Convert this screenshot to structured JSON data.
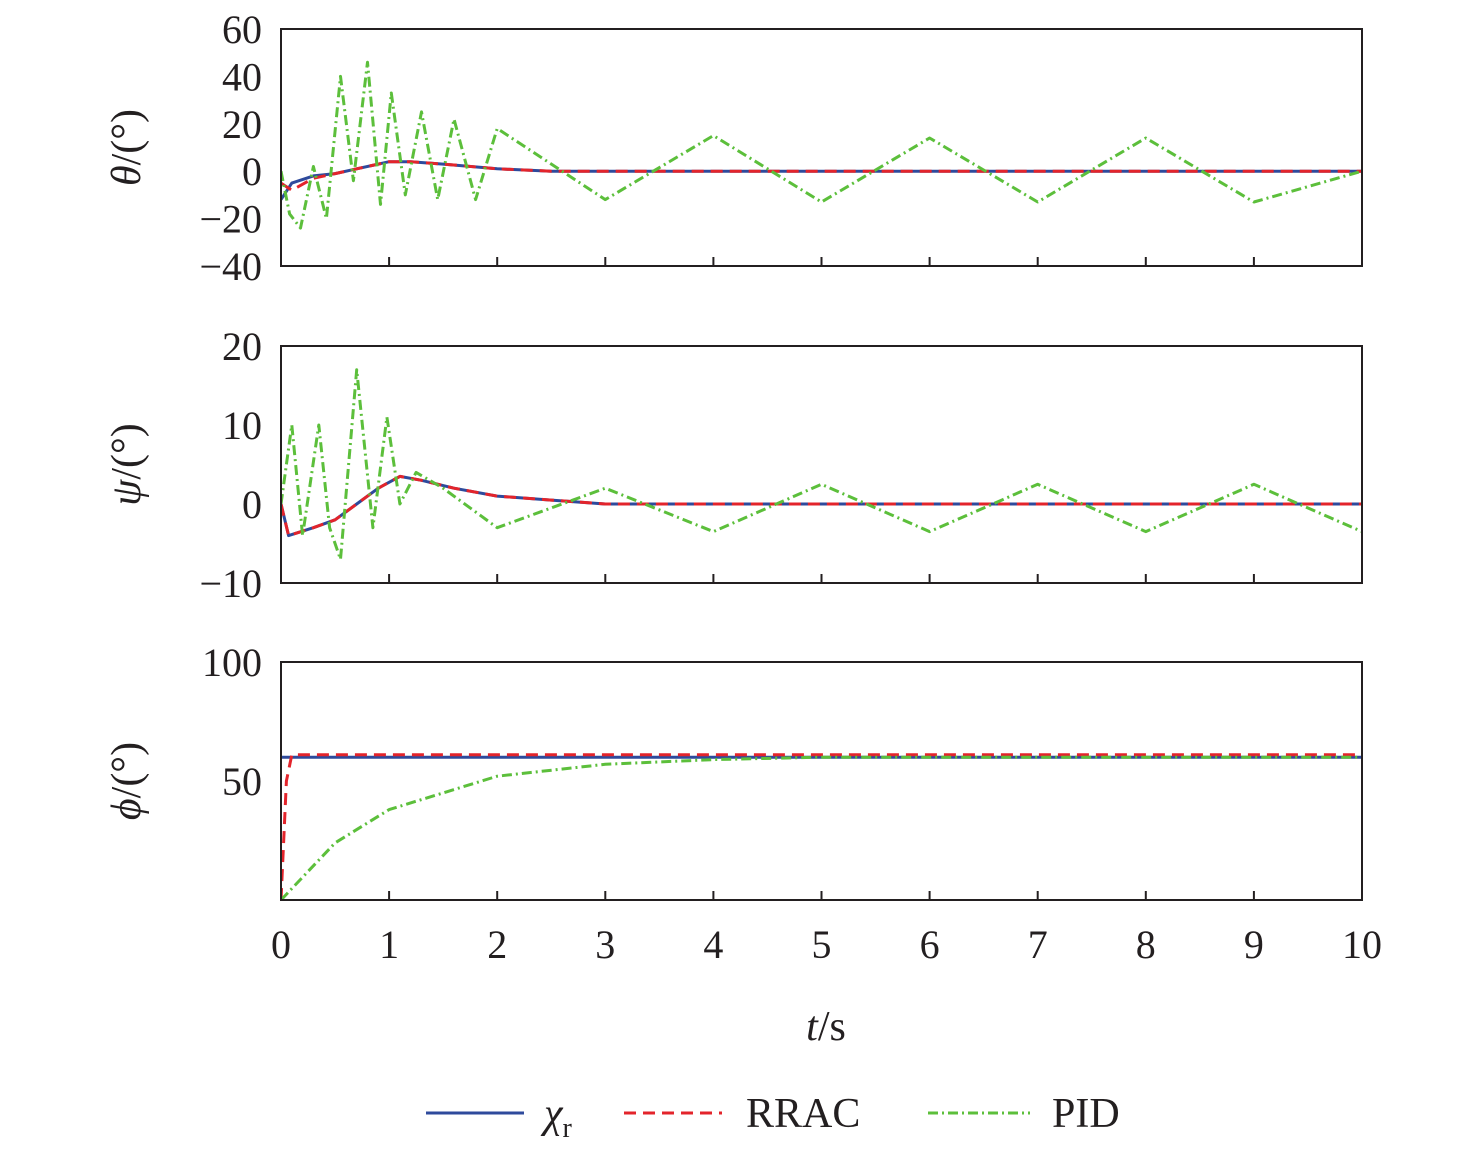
{
  "colors": {
    "reference": "#2e4a9c",
    "rrac": "#e3242b",
    "pid": "#5cbf3b",
    "axis": "#231f20"
  },
  "xaxis": {
    "label_var": "t",
    "label_unit": "/s",
    "ticks": [
      0,
      1,
      2,
      3,
      4,
      5,
      6,
      7,
      8,
      9,
      10
    ]
  },
  "legend": {
    "placement": "bottom-center",
    "items": [
      {
        "key": "reference",
        "symbol": "χ",
        "subscript": "r",
        "style": "solid"
      },
      {
        "key": "rrac",
        "label": "RRAC",
        "style": "dashed"
      },
      {
        "key": "pid",
        "label": "PID",
        "style": "dash-dot"
      }
    ]
  },
  "chart_data": [
    {
      "type": "line",
      "ylabel_var": "θ",
      "ylabel_unit": "/(°)",
      "xlim": [
        0,
        10
      ],
      "ylim": [
        -40,
        60
      ],
      "yticks": [
        -40,
        -20,
        0,
        20,
        40,
        60
      ],
      "grid": false,
      "series": [
        {
          "key": "reference",
          "x": [
            0,
            0.1,
            0.3,
            0.5,
            0.7,
            0.9,
            1.0,
            1.2,
            1.5,
            2.0,
            2.5,
            3.0,
            4.0,
            5.0,
            6.0,
            7.0,
            8.0,
            9.0,
            10.0
          ],
          "y": [
            -12,
            -5,
            -2,
            -1,
            1,
            3,
            4,
            4,
            3,
            1,
            0,
            0,
            0,
            0,
            0,
            0,
            0,
            0,
            0
          ]
        },
        {
          "key": "rrac",
          "x": [
            0,
            0.1,
            0.3,
            0.5,
            0.7,
            0.9,
            1.0,
            1.2,
            1.5,
            2.0,
            2.5,
            3.0,
            4.0,
            5.0,
            6.0,
            7.0,
            8.0,
            9.0,
            10.0
          ],
          "y": [
            -5,
            -8,
            -3,
            -1,
            1,
            3,
            4,
            4,
            3,
            1,
            0,
            0,
            0,
            0,
            0,
            0,
            0,
            0,
            0
          ]
        },
        {
          "key": "pid",
          "x": [
            0,
            0.08,
            0.18,
            0.3,
            0.42,
            0.55,
            0.67,
            0.8,
            0.92,
            1.02,
            1.15,
            1.3,
            1.45,
            1.6,
            1.8,
            2.0,
            3.0,
            4.0,
            5.0,
            6.0,
            7.0,
            8.0,
            9.0,
            10.0
          ],
          "y": [
            0,
            -18,
            -24,
            2,
            -20,
            40,
            -4,
            46,
            -14,
            33,
            -10,
            25,
            -12,
            22,
            -12,
            18,
            -12,
            15,
            -13,
            14,
            -13,
            14,
            -13,
            0
          ]
        }
      ]
    },
    {
      "type": "line",
      "ylabel_var": "ψ",
      "ylabel_unit": "/(°)",
      "xlim": [
        0,
        10
      ],
      "ylim": [
        -10,
        20
      ],
      "yticks": [
        -10,
        0,
        10,
        20
      ],
      "grid": false,
      "series": [
        {
          "key": "reference",
          "x": [
            0,
            0.07,
            0.3,
            0.5,
            0.7,
            0.9,
            1.1,
            1.3,
            1.6,
            2.0,
            2.5,
            3.0,
            4.0,
            5.0,
            6.0,
            7.0,
            8.0,
            9.0,
            10.0
          ],
          "y": [
            0,
            -4,
            -3,
            -2,
            0,
            2,
            3.5,
            3,
            2,
            1,
            0.5,
            0,
            0,
            0,
            0,
            0,
            0,
            0,
            0
          ]
        },
        {
          "key": "rrac",
          "x": [
            0,
            0.07,
            0.3,
            0.5,
            0.7,
            0.9,
            1.1,
            1.3,
            1.6,
            2.0,
            2.5,
            3.0,
            4.0,
            5.0,
            6.0,
            7.0,
            8.0,
            9.0,
            10.0
          ],
          "y": [
            0,
            -4,
            -3,
            -2,
            0,
            2,
            3.5,
            3,
            2,
            1,
            0.5,
            0,
            0,
            0,
            0,
            0,
            0,
            0,
            0
          ]
        },
        {
          "key": "pid",
          "x": [
            0,
            0.1,
            0.2,
            0.35,
            0.45,
            0.55,
            0.7,
            0.85,
            0.98,
            1.1,
            1.25,
            1.5,
            2.0,
            3.0,
            4.0,
            5.0,
            6.0,
            7.0,
            8.0,
            9.0,
            10.0
          ],
          "y": [
            0,
            10,
            -4,
            10,
            -3,
            -7,
            17,
            -3,
            11,
            0,
            4,
            2,
            -3,
            2,
            -3.5,
            2.5,
            -3.5,
            2.5,
            -3.5,
            2.5,
            -3.5
          ]
        }
      ]
    },
    {
      "type": "line",
      "ylabel_var": "ϕ",
      "ylabel_unit": "/(°)",
      "xlim": [
        0,
        10
      ],
      "ylim": [
        0,
        100
      ],
      "yticks": [
        50,
        100
      ],
      "grid": false,
      "series": [
        {
          "key": "reference",
          "x": [
            0,
            10
          ],
          "y": [
            60,
            60
          ]
        },
        {
          "key": "rrac",
          "x": [
            0,
            0.05,
            0.1,
            10
          ],
          "y": [
            0,
            50,
            61,
            61
          ]
        },
        {
          "key": "pid",
          "x": [
            0,
            0.5,
            1,
            2,
            3,
            4,
            5,
            10
          ],
          "y": [
            0,
            24,
            38,
            52,
            57,
            59,
            60,
            60
          ]
        }
      ]
    }
  ]
}
